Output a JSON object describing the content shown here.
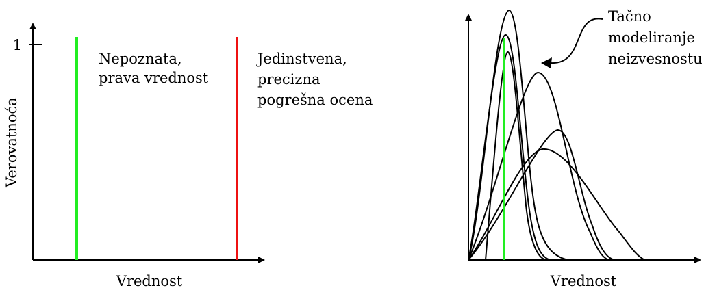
{
  "left_panel": {
    "y_axis_label": "Verovatnoća",
    "x_axis_label": "Vrednost",
    "y_tick_label": "1",
    "true_value_label": [
      "Nepoznata,",
      "prava vrednost"
    ],
    "estimate_label": [
      "Jedinstvena,",
      "precizna",
      "pogrešna ocena"
    ],
    "true_value_color": "#22ee22",
    "estimate_color": "#ee1111"
  },
  "right_panel": {
    "x_axis_label": "Vrednost",
    "annotation": [
      "Tačno",
      "modeliranje",
      "neizvesnostu"
    ],
    "true_value_color": "#22ee22"
  }
}
